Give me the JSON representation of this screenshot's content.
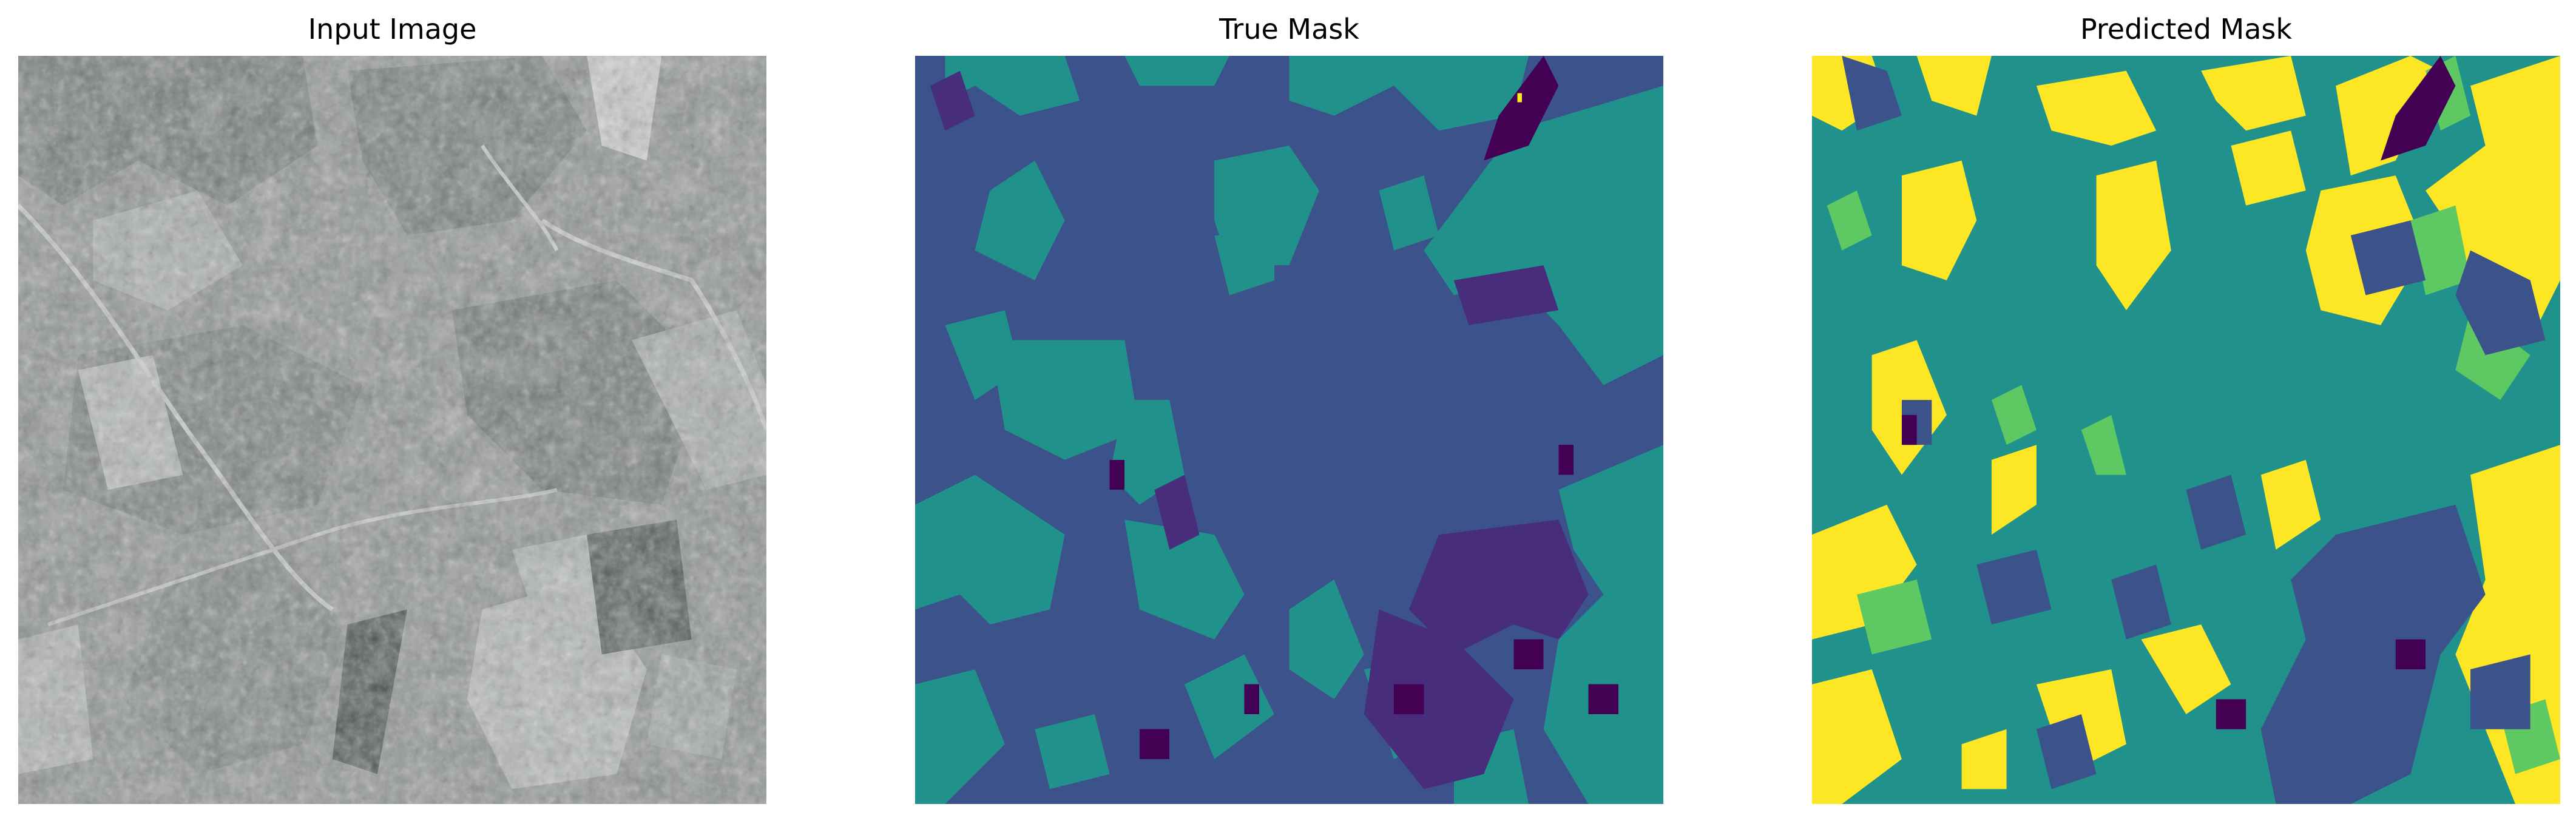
{
  "panels": [
    {
      "title": "Input Image"
    },
    {
      "title": "True Mask"
    },
    {
      "title": "Predicted Mask"
    }
  ],
  "colors": {
    "viridis_0": "#440154",
    "viridis_1": "#3b528b",
    "viridis_2": "#21918c",
    "viridis_3": "#5ec962",
    "viridis_4": "#fde725",
    "grey_field": "#9aa0a0",
    "grey_dark": "#4f5650",
    "grey_light": "#c7cccb"
  }
}
